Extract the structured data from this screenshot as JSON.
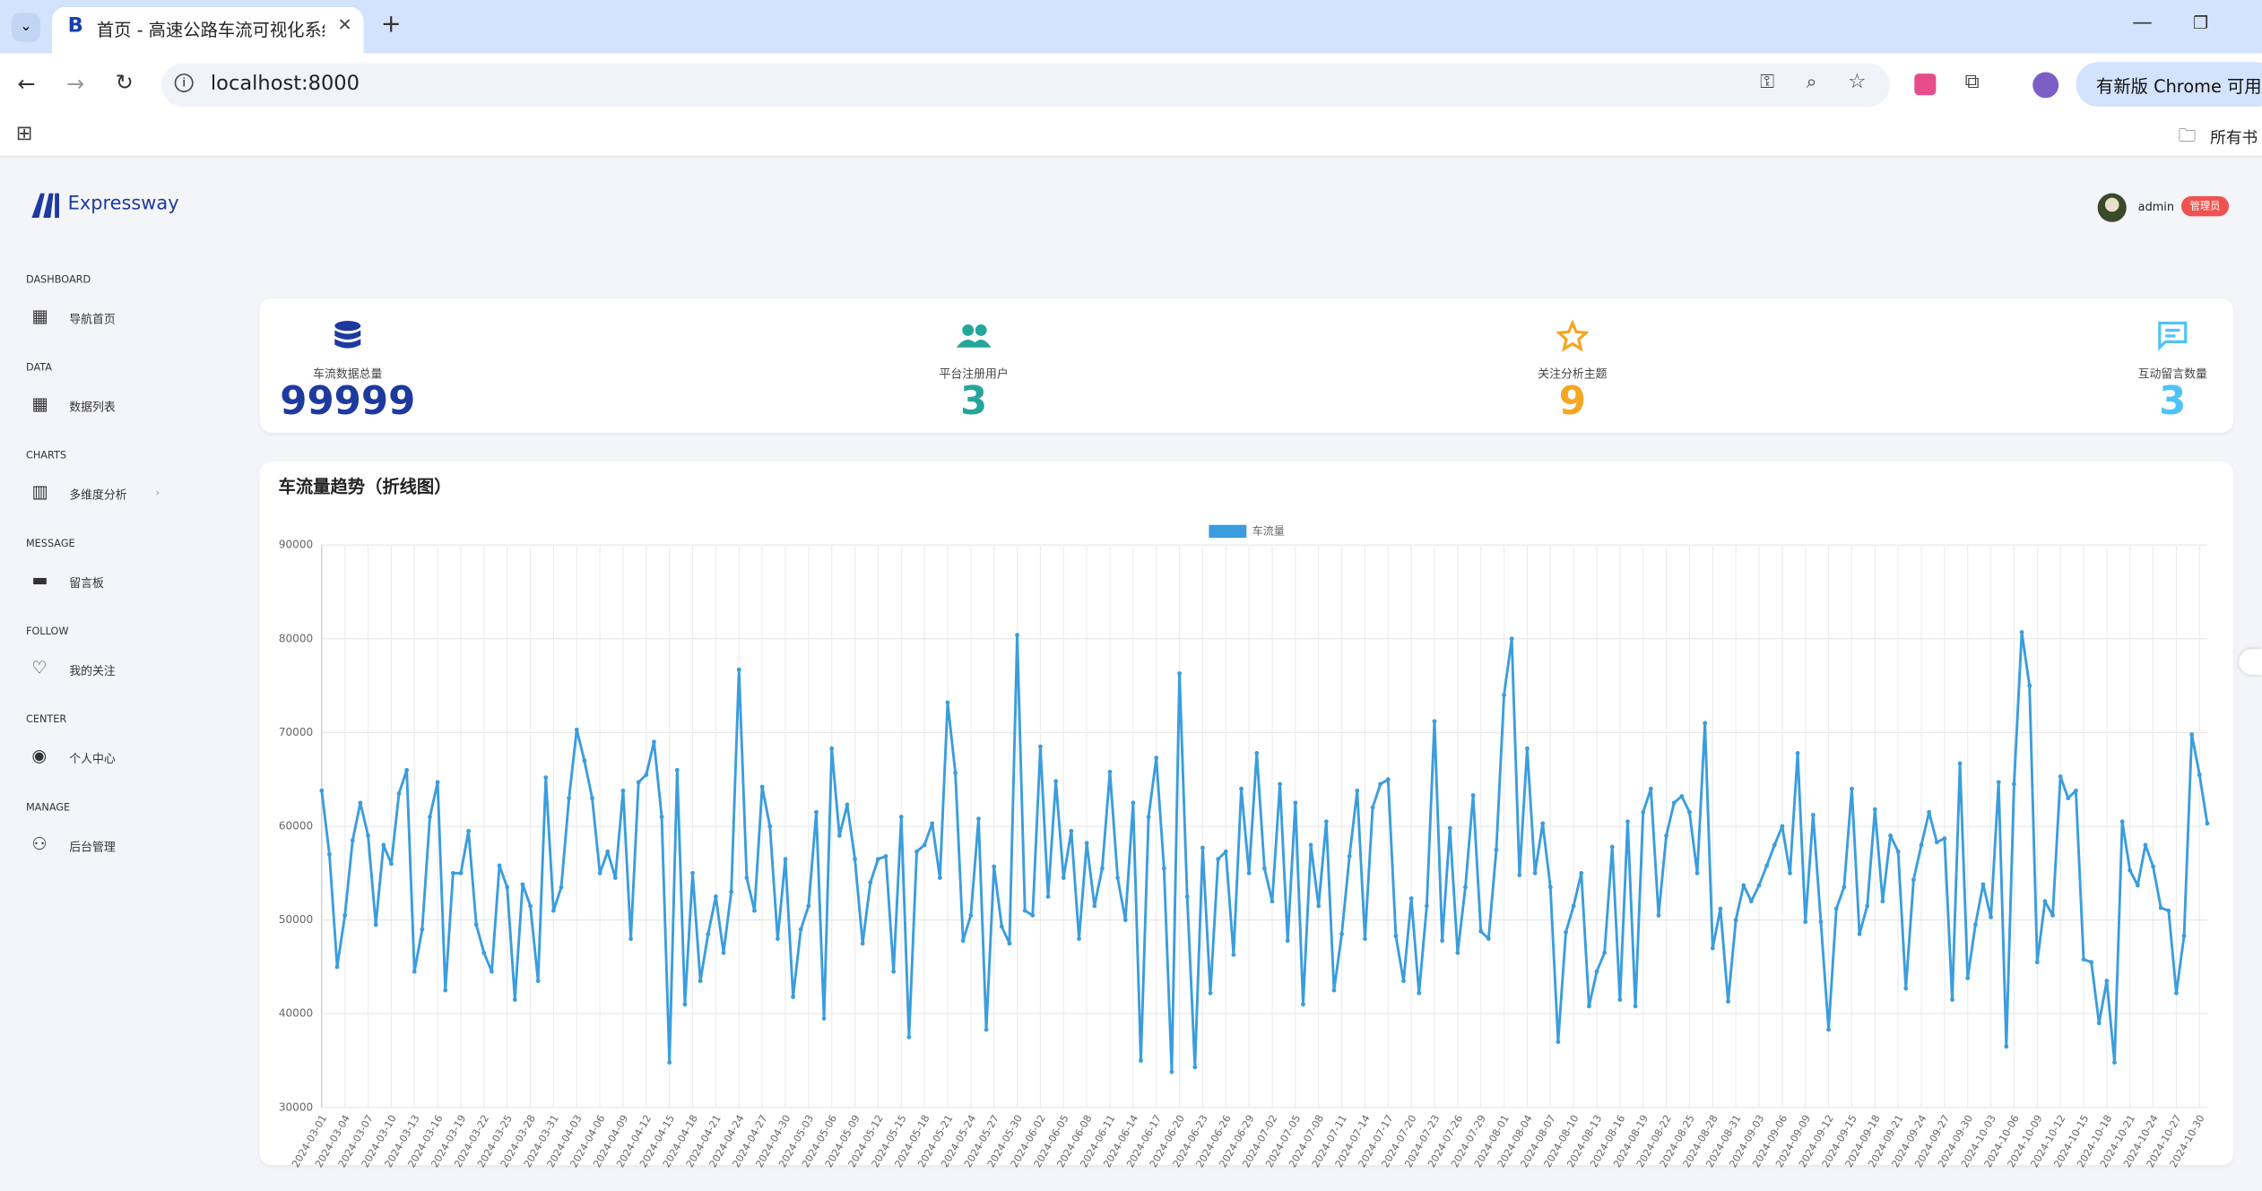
{
  "browser": {
    "tab_title": "首页 - 高速公路车流可视化系统",
    "url": "localhost:8000",
    "update_notice": "有新版 Chrome 可用",
    "bookmarks": "所有书"
  },
  "header": {
    "brand": "Expressway",
    "user": "admin",
    "role": "管理员"
  },
  "sidebar": [
    {
      "section": "DASHBOARD",
      "item": "导航首页"
    },
    {
      "section": "DATA",
      "item": "数据列表"
    },
    {
      "section": "CHARTS",
      "item": "多维度分析"
    },
    {
      "section": "MESSAGE",
      "item": "留言板"
    },
    {
      "section": "FOLLOW",
      "item": "我的关注"
    },
    {
      "section": "CENTER",
      "item": "个人中心"
    },
    {
      "section": "MANAGE",
      "item": "后台管理"
    }
  ],
  "stats": [
    {
      "label": "车流数据总量",
      "value": 99999
    },
    {
      "label": "平台注册用户",
      "value": 3
    },
    {
      "label": "关注分析主题",
      "value": 9
    },
    {
      "label": "互动留言数量",
      "value": 3
    }
  ],
  "chart_data": {
    "type": "line",
    "title": "车流量趋势（折线图）",
    "categories": [
      "2024-03-01",
      null,
      null,
      "2024-03-04",
      null,
      null,
      "2024-03-07",
      null,
      null,
      "2024-03-10",
      null,
      null,
      "2024-03-13",
      null,
      null,
      "2024-03-16",
      null,
      null,
      "2024-03-19",
      null,
      null,
      "2024-03-22",
      null,
      null,
      "2024-03-25",
      null,
      null,
      "2024-03-28",
      null,
      null,
      "2024-03-31",
      null,
      null,
      "2024-04-03",
      null,
      null,
      "2024-04-06",
      null,
      null,
      "2024-04-09",
      null,
      null,
      "2024-04-12",
      null,
      null,
      "2024-04-15",
      null,
      null,
      "2024-04-18",
      null,
      null,
      "2024-04-21",
      null,
      null,
      "2024-04-24",
      null,
      null,
      "2024-04-27",
      null,
      null,
      "2024-04-30",
      null,
      null,
      "2024-05-03",
      null,
      null,
      "2024-05-06",
      null,
      null,
      "2024-05-09",
      null,
      null,
      "2024-05-12",
      null,
      null,
      "2024-05-15",
      null,
      null,
      "2024-05-18",
      null,
      null,
      "2024-05-21",
      null,
      null,
      "2024-05-24",
      null,
      null,
      "2024-05-27",
      null,
      null,
      "2024-05-30",
      null,
      null,
      "2024-06-02",
      null,
      null,
      "2024-06-05",
      null,
      null,
      "2024-06-08",
      null,
      null,
      "2024-06-11",
      null,
      null,
      "2024-06-14",
      null,
      null,
      "2024-06-17",
      null,
      null,
      "2024-06-20",
      null,
      null,
      "2024-06-23",
      null,
      null,
      "2024-06-26",
      null,
      null,
      "2024-06-29",
      null,
      null,
      "2024-07-02",
      null,
      null,
      "2024-07-05",
      null,
      null,
      "2024-07-08",
      null,
      null,
      "2024-07-11",
      null,
      null,
      "2024-07-14",
      null,
      null,
      "2024-07-17",
      null,
      null,
      "2024-07-20",
      null,
      null,
      "2024-07-23",
      null,
      null,
      "2024-07-26",
      null,
      null,
      "2024-07-29",
      null,
      null,
      "2024-08-01",
      null,
      null,
      "2024-08-04",
      null,
      null,
      "2024-08-07",
      null,
      null,
      "2024-08-10",
      null,
      null,
      "2024-08-13",
      null,
      null,
      "2024-08-16",
      null,
      null,
      "2024-08-19",
      null,
      null,
      "2024-08-22",
      null,
      null,
      "2024-08-25",
      null,
      null,
      "2024-08-28",
      null,
      null,
      "2024-08-31",
      null,
      null,
      "2024-09-03",
      null,
      null,
      "2024-09-06",
      null,
      null,
      "2024-09-09",
      null,
      null,
      "2024-09-12",
      null,
      null,
      "2024-09-15",
      null,
      null,
      "2024-09-18",
      null,
      null,
      "2024-09-21",
      null,
      null,
      "2024-09-24",
      null,
      null,
      "2024-09-27",
      null,
      null,
      "2024-09-30",
      null,
      null,
      "2024-10-03",
      null,
      null,
      "2024-10-06",
      null,
      null,
      "2024-10-09",
      null,
      null,
      "2024-10-12",
      null,
      null,
      "2024-10-15",
      null,
      null,
      "2024-10-18",
      null,
      null,
      "2024-10-21",
      null,
      null,
      "2024-10-24",
      null,
      null,
      "2024-10-27",
      null,
      null,
      "2024-10-30",
      null
    ],
    "series": [
      {
        "name": "车流量",
        "color": "#3b9ddd",
        "values": [
          63800,
          57000,
          45000,
          50500,
          58500,
          62500,
          59000,
          49500,
          58000,
          56000,
          63500,
          66000,
          44500,
          49000,
          61000,
          64700,
          42500,
          55000,
          55000,
          59500,
          49500,
          46500,
          44500,
          55800,
          53500,
          41500,
          53800,
          51500,
          43500,
          65200,
          51000,
          53500,
          63000,
          70300,
          67000,
          63000,
          55000,
          57300,
          54500,
          63800,
          48000,
          64700,
          65500,
          69000,
          61000,
          34800,
          66000,
          41000,
          55000,
          43500,
          48500,
          52500,
          46500,
          53000,
          76700,
          54500,
          51000,
          64200,
          60000,
          48000,
          56500,
          41800,
          49000,
          51500,
          61500,
          39500,
          68300,
          59000,
          62300,
          56500,
          47500,
          54000,
          56500,
          56800,
          44500,
          61000,
          37500,
          57300,
          58000,
          60300,
          54500,
          73200,
          65700,
          47800,
          50500,
          60800,
          38300,
          55700,
          49300,
          47500,
          80400,
          51000,
          50500,
          68500,
          52500,
          64800,
          54500,
          59500,
          48000,
          58200,
          51500,
          55500,
          65800,
          54500,
          50000,
          62500,
          35000,
          61000,
          67300,
          55500,
          33800,
          76300,
          52500,
          34300,
          57700,
          42200,
          56500,
          57300,
          46300,
          64000,
          55000,
          67800,
          55500,
          52000,
          64500,
          47800,
          62500,
          41000,
          58000,
          51500,
          60500,
          42500,
          48500,
          56800,
          63800,
          48000,
          62000,
          64500,
          65000,
          48300,
          43500,
          52300,
          42200,
          51500,
          71200,
          47800,
          59800,
          46500,
          53500,
          63300,
          48800,
          48000,
          57500,
          74000,
          80000,
          54800,
          68300,
          55000,
          60300,
          53500,
          37000,
          48700,
          51500,
          55000,
          40800,
          44500,
          46500,
          57800,
          41500,
          60500,
          40800,
          61500,
          64000,
          50500,
          59000,
          62500,
          63200,
          61500,
          55000,
          71000,
          47000,
          51200,
          41300,
          50000,
          53700,
          52000,
          53700,
          55800,
          58000,
          60000,
          55000,
          67800,
          49800,
          61200,
          49800,
          38300,
          51200,
          53500,
          64000,
          48500,
          51500,
          61800,
          52000,
          59000,
          57300,
          42700,
          54300,
          58000,
          61500,
          58300,
          58700,
          41500,
          66700,
          43800,
          49500,
          53800,
          50300,
          64700,
          36500,
          64500,
          80700,
          75000,
          45500,
          52000,
          50500,
          65300,
          63000,
          63800,
          45800,
          45500,
          39000,
          43500,
          34800,
          60500,
          55300,
          53700,
          58000,
          55700,
          51300,
          51000,
          42200,
          48300,
          69800,
          65500,
          60300
        ]
      }
    ],
    "ylim": [
      30000,
      90000
    ],
    "yticks": [
      30000,
      40000,
      50000,
      60000,
      70000,
      80000,
      90000
    ],
    "grid": true,
    "legend": "top"
  }
}
